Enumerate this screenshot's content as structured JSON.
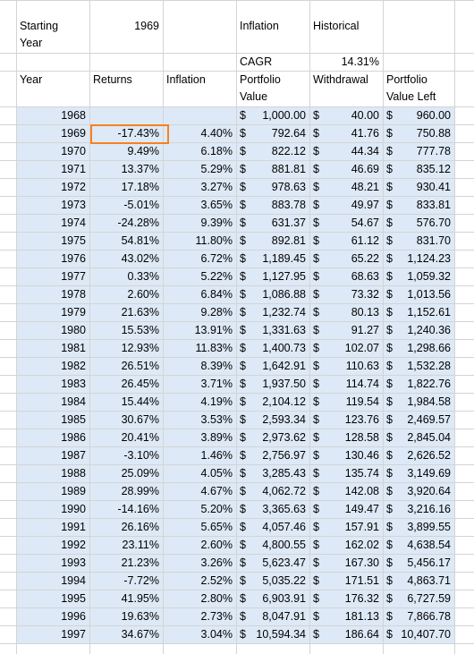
{
  "sheet": {
    "top_labels": {
      "starting_year_label": "Starting",
      "starting_year_label_2": "Year",
      "starting_year_value": "1969",
      "inflation_label": "Inflation",
      "historical_label": "Historical",
      "cagr_label": "CAGR",
      "cagr_value": "14.31%"
    },
    "headers": {
      "year": "Year",
      "returns": "Returns",
      "inflation": "Inflation",
      "portfolio_value_1": "Portfolio",
      "portfolio_value_2": "Value",
      "withdrawal": "Withdrawal",
      "portfolio_left_1": "Portfolio",
      "portfolio_left_2": "Value Left"
    },
    "currency_symbol": "$",
    "selected_cell": "Returns 1969",
    "rows": [
      {
        "year": "1968",
        "returns": "",
        "inflation": "",
        "value": "1,000.00",
        "withdrawal": "40.00",
        "left": "960.00"
      },
      {
        "year": "1969",
        "returns": "-17.43%",
        "inflation": "4.40%",
        "value": "792.64",
        "withdrawal": "41.76",
        "left": "750.88"
      },
      {
        "year": "1970",
        "returns": "9.49%",
        "inflation": "6.18%",
        "value": "822.12",
        "withdrawal": "44.34",
        "left": "777.78"
      },
      {
        "year": "1971",
        "returns": "13.37%",
        "inflation": "5.29%",
        "value": "881.81",
        "withdrawal": "46.69",
        "left": "835.12"
      },
      {
        "year": "1972",
        "returns": "17.18%",
        "inflation": "3.27%",
        "value": "978.63",
        "withdrawal": "48.21",
        "left": "930.41"
      },
      {
        "year": "1973",
        "returns": "-5.01%",
        "inflation": "3.65%",
        "value": "883.78",
        "withdrawal": "49.97",
        "left": "833.81"
      },
      {
        "year": "1974",
        "returns": "-24.28%",
        "inflation": "9.39%",
        "value": "631.37",
        "withdrawal": "54.67",
        "left": "576.70"
      },
      {
        "year": "1975",
        "returns": "54.81%",
        "inflation": "11.80%",
        "value": "892.81",
        "withdrawal": "61.12",
        "left": "831.70"
      },
      {
        "year": "1976",
        "returns": "43.02%",
        "inflation": "6.72%",
        "value": "1,189.45",
        "withdrawal": "65.22",
        "left": "1,124.23"
      },
      {
        "year": "1977",
        "returns": "0.33%",
        "inflation": "5.22%",
        "value": "1,127.95",
        "withdrawal": "68.63",
        "left": "1,059.32"
      },
      {
        "year": "1978",
        "returns": "2.60%",
        "inflation": "6.84%",
        "value": "1,086.88",
        "withdrawal": "73.32",
        "left": "1,013.56"
      },
      {
        "year": "1979",
        "returns": "21.63%",
        "inflation": "9.28%",
        "value": "1,232.74",
        "withdrawal": "80.13",
        "left": "1,152.61"
      },
      {
        "year": "1980",
        "returns": "15.53%",
        "inflation": "13.91%",
        "value": "1,331.63",
        "withdrawal": "91.27",
        "left": "1,240.36"
      },
      {
        "year": "1981",
        "returns": "12.93%",
        "inflation": "11.83%",
        "value": "1,400.73",
        "withdrawal": "102.07",
        "left": "1,298.66"
      },
      {
        "year": "1982",
        "returns": "26.51%",
        "inflation": "8.39%",
        "value": "1,642.91",
        "withdrawal": "110.63",
        "left": "1,532.28"
      },
      {
        "year": "1983",
        "returns": "26.45%",
        "inflation": "3.71%",
        "value": "1,937.50",
        "withdrawal": "114.74",
        "left": "1,822.76"
      },
      {
        "year": "1984",
        "returns": "15.44%",
        "inflation": "4.19%",
        "value": "2,104.12",
        "withdrawal": "119.54",
        "left": "1,984.58"
      },
      {
        "year": "1985",
        "returns": "30.67%",
        "inflation": "3.53%",
        "value": "2,593.34",
        "withdrawal": "123.76",
        "left": "2,469.57"
      },
      {
        "year": "1986",
        "returns": "20.41%",
        "inflation": "3.89%",
        "value": "2,973.62",
        "withdrawal": "128.58",
        "left": "2,845.04"
      },
      {
        "year": "1987",
        "returns": "-3.10%",
        "inflation": "1.46%",
        "value": "2,756.97",
        "withdrawal": "130.46",
        "left": "2,626.52"
      },
      {
        "year": "1988",
        "returns": "25.09%",
        "inflation": "4.05%",
        "value": "3,285.43",
        "withdrawal": "135.74",
        "left": "3,149.69"
      },
      {
        "year": "1989",
        "returns": "28.99%",
        "inflation": "4.67%",
        "value": "4,062.72",
        "withdrawal": "142.08",
        "left": "3,920.64"
      },
      {
        "year": "1990",
        "returns": "-14.16%",
        "inflation": "5.20%",
        "value": "3,365.63",
        "withdrawal": "149.47",
        "left": "3,216.16"
      },
      {
        "year": "1991",
        "returns": "26.16%",
        "inflation": "5.65%",
        "value": "4,057.46",
        "withdrawal": "157.91",
        "left": "3,899.55"
      },
      {
        "year": "1992",
        "returns": "23.11%",
        "inflation": "2.60%",
        "value": "4,800.55",
        "withdrawal": "162.02",
        "left": "4,638.54"
      },
      {
        "year": "1993",
        "returns": "21.23%",
        "inflation": "3.26%",
        "value": "5,623.47",
        "withdrawal": "167.30",
        "left": "5,456.17"
      },
      {
        "year": "1994",
        "returns": "-7.72%",
        "inflation": "2.52%",
        "value": "5,035.22",
        "withdrawal": "171.51",
        "left": "4,863.71"
      },
      {
        "year": "1995",
        "returns": "41.95%",
        "inflation": "2.80%",
        "value": "6,903.91",
        "withdrawal": "176.32",
        "left": "6,727.59"
      },
      {
        "year": "1996",
        "returns": "19.63%",
        "inflation": "2.73%",
        "value": "8,047.91",
        "withdrawal": "181.13",
        "left": "7,866.78"
      },
      {
        "year": "1997",
        "returns": "34.67%",
        "inflation": "3.04%",
        "value": "10,594.34",
        "withdrawal": "186.64",
        "left": "10,407.70"
      }
    ]
  }
}
